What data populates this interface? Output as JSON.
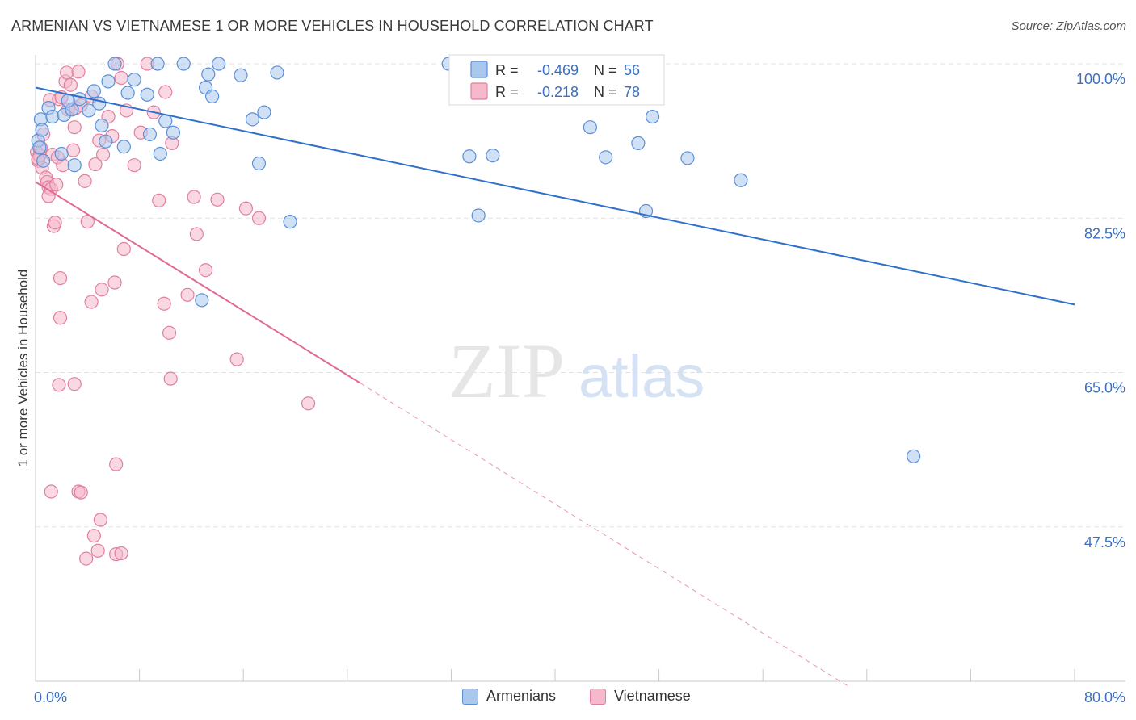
{
  "title": "ARMENIAN VS VIETNAMESE 1 OR MORE VEHICLES IN HOUSEHOLD CORRELATION CHART",
  "source": "Source: ZipAtlas.com",
  "watermark": {
    "zip": "ZIP",
    "atlas": "atlas"
  },
  "colors": {
    "armenian_fill": "#aac8ee",
    "armenian_stroke": "#5b8fd6",
    "armenian_line": "#2f70cc",
    "vietnamese_fill": "#f6b8cb",
    "vietnamese_stroke": "#e07fa0",
    "vietnamese_line": "#e06a95",
    "axis_label": "#3b6fc4",
    "grid": "#e3e3e3"
  },
  "legend_top": {
    "rows": [
      {
        "r_label": "R =",
        "r_value": "-0.469",
        "n_label": "N =",
        "n_value": "56"
      },
      {
        "r_label": "R =",
        "r_value": "-0.218",
        "n_label": "N =",
        "n_value": "78"
      }
    ]
  },
  "legend_bottom": {
    "armenians": "Armenians",
    "vietnamese": "Vietnamese"
  },
  "chart_data": {
    "type": "scatter",
    "title": "ARMENIAN VS VIETNAMESE 1 OR MORE VEHICLES IN HOUSEHOLD CORRELATION CHART",
    "xlabel": "",
    "ylabel": "1 or more Vehicles in Household",
    "xlim": [
      0,
      80
    ],
    "ylim": [
      30,
      100
    ],
    "x_ticks": [
      "0.0%",
      "80.0%"
    ],
    "y_ticks": [
      {
        "value": 100,
        "label": "100.0%"
      },
      {
        "value": 82.5,
        "label": "82.5%"
      },
      {
        "value": 65,
        "label": "65.0%"
      },
      {
        "value": 47.5,
        "label": "47.5%"
      }
    ],
    "grid": true,
    "legend_placement": "top-center",
    "series": [
      {
        "name": "Armenians",
        "r": -0.469,
        "n": 56,
        "trend": {
          "x": [
            0,
            80
          ],
          "y": [
            97.3,
            72.7
          ]
        },
        "points": [
          [
            0.2,
            91.3
          ],
          [
            0.4,
            93.7
          ],
          [
            1.0,
            95.0
          ],
          [
            1.3,
            94.0
          ],
          [
            2.0,
            89.8
          ],
          [
            2.2,
            94.2
          ],
          [
            2.8,
            94.8
          ],
          [
            3.0,
            88.5
          ],
          [
            3.4,
            96.0
          ],
          [
            4.1,
            94.7
          ],
          [
            4.5,
            96.9
          ],
          [
            4.9,
            95.5
          ],
          [
            5.1,
            93.0
          ],
          [
            5.4,
            91.2
          ],
          [
            5.6,
            98.0
          ],
          [
            6.1,
            100.0
          ],
          [
            6.8,
            90.6
          ],
          [
            7.1,
            96.7
          ],
          [
            7.6,
            98.2
          ],
          [
            8.6,
            96.5
          ],
          [
            8.8,
            92.0
          ],
          [
            9.4,
            100.0
          ],
          [
            9.6,
            89.8
          ],
          [
            10.0,
            93.5
          ],
          [
            10.6,
            92.2
          ],
          [
            11.4,
            100.0
          ],
          [
            12.8,
            73.2
          ],
          [
            13.1,
            97.3
          ],
          [
            13.3,
            98.8
          ],
          [
            13.6,
            96.3
          ],
          [
            14.1,
            100.0
          ],
          [
            15.8,
            98.7
          ],
          [
            16.7,
            93.7
          ],
          [
            17.2,
            88.7
          ],
          [
            17.6,
            94.5
          ],
          [
            18.6,
            99.0
          ],
          [
            19.6,
            82.1
          ],
          [
            31.8,
            100.0
          ],
          [
            33.4,
            89.5
          ],
          [
            33.6,
            98.9
          ],
          [
            34.1,
            82.8
          ],
          [
            35.2,
            89.6
          ],
          [
            35.9,
            100.0
          ],
          [
            42.0,
            100.0
          ],
          [
            42.7,
            92.8
          ],
          [
            43.9,
            89.4
          ],
          [
            46.4,
            91.0
          ],
          [
            47.0,
            83.3
          ],
          [
            47.5,
            94.0
          ],
          [
            50.2,
            89.3
          ],
          [
            54.3,
            86.8
          ],
          [
            67.6,
            55.5
          ],
          [
            0.3,
            90.5
          ],
          [
            0.6,
            89.0
          ],
          [
            0.5,
            92.5
          ],
          [
            2.5,
            95.8
          ]
        ]
      },
      {
        "name": "Vietnamese",
        "r": -0.218,
        "n": 78,
        "trend": {
          "x": [
            0,
            25
          ],
          "y": [
            86.6,
            63.8
          ]
        },
        "trend_dashed": {
          "x": [
            25,
            62.5
          ],
          "y": [
            63.8,
            29.5
          ]
        },
        "points": [
          [
            0.1,
            90.0
          ],
          [
            0.2,
            89.0
          ],
          [
            0.3,
            89.6
          ],
          [
            0.4,
            90.5
          ],
          [
            0.5,
            88.2
          ],
          [
            0.6,
            92.0
          ],
          [
            0.8,
            87.1
          ],
          [
            0.9,
            86.6
          ],
          [
            1.0,
            86.0
          ],
          [
            1.1,
            95.9
          ],
          [
            1.2,
            85.8
          ],
          [
            1.3,
            89.7
          ],
          [
            1.4,
            81.6
          ],
          [
            1.5,
            82.0
          ],
          [
            1.6,
            86.3
          ],
          [
            1.7,
            89.4
          ],
          [
            1.8,
            96.0
          ],
          [
            1.9,
            75.7
          ],
          [
            2.0,
            96.2
          ],
          [
            2.1,
            88.5
          ],
          [
            2.3,
            98.0
          ],
          [
            2.4,
            99.0
          ],
          [
            2.5,
            94.8
          ],
          [
            2.7,
            97.6
          ],
          [
            2.9,
            90.2
          ],
          [
            3.0,
            92.8
          ],
          [
            3.1,
            95.0
          ],
          [
            3.3,
            99.1
          ],
          [
            3.5,
            95.3
          ],
          [
            3.8,
            86.7
          ],
          [
            4.0,
            82.1
          ],
          [
            4.3,
            96.3
          ],
          [
            4.6,
            88.6
          ],
          [
            4.9,
            91.3
          ],
          [
            5.2,
            89.7
          ],
          [
            5.6,
            94.0
          ],
          [
            5.9,
            91.8
          ],
          [
            6.3,
            100.0
          ],
          [
            6.6,
            98.4
          ],
          [
            7.0,
            94.7
          ],
          [
            7.6,
            88.5
          ],
          [
            8.1,
            92.2
          ],
          [
            8.6,
            100.0
          ],
          [
            9.1,
            94.5
          ],
          [
            9.5,
            84.5
          ],
          [
            10.0,
            96.8
          ],
          [
            10.5,
            91.0
          ],
          [
            12.2,
            84.9
          ],
          [
            12.4,
            80.7
          ],
          [
            14.0,
            84.6
          ],
          [
            16.2,
            83.6
          ],
          [
            17.2,
            82.5
          ],
          [
            11.7,
            73.8
          ],
          [
            13.1,
            76.6
          ],
          [
            6.8,
            79.0
          ],
          [
            9.9,
            72.8
          ],
          [
            6.1,
            75.2
          ],
          [
            5.1,
            74.4
          ],
          [
            4.3,
            73.0
          ],
          [
            1.9,
            71.2
          ],
          [
            10.3,
            69.5
          ],
          [
            15.5,
            66.5
          ],
          [
            10.4,
            64.3
          ],
          [
            21.0,
            61.5
          ],
          [
            1.8,
            63.6
          ],
          [
            3.0,
            63.7
          ],
          [
            6.2,
            54.6
          ],
          [
            1.2,
            51.5
          ],
          [
            3.3,
            51.5
          ],
          [
            3.5,
            51.4
          ],
          [
            5.0,
            48.3
          ],
          [
            4.5,
            46.5
          ],
          [
            4.8,
            44.8
          ],
          [
            3.9,
            43.9
          ],
          [
            6.2,
            44.4
          ],
          [
            6.6,
            44.5
          ],
          [
            1.0,
            85.0
          ],
          [
            0.2,
            89.2
          ]
        ]
      }
    ]
  }
}
